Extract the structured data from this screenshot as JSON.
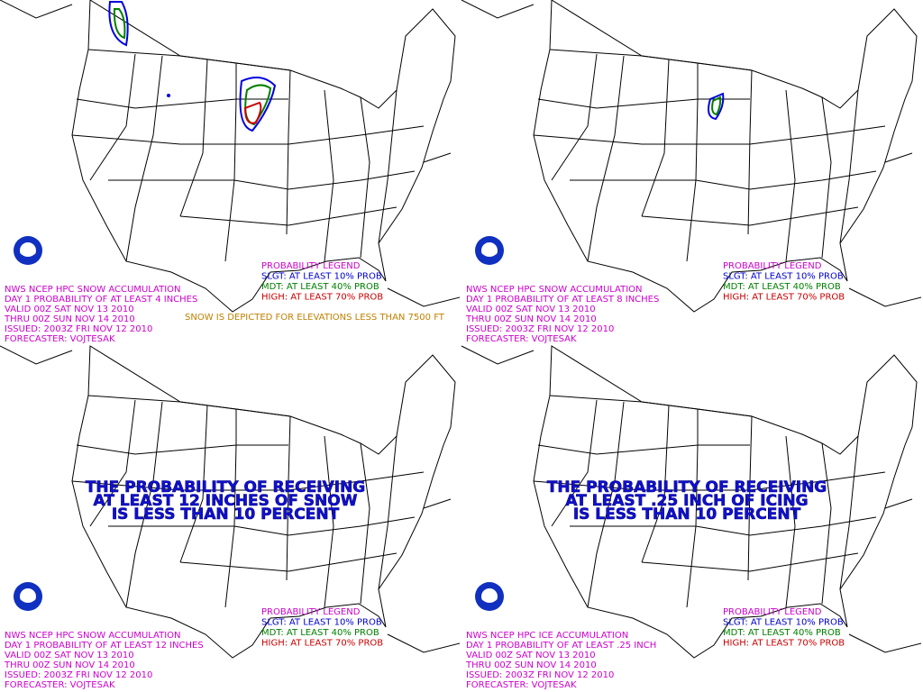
{
  "panels": [
    {
      "info": [
        "NWS NCEP HPC SNOW ACCUMULATION",
        "DAY 1 PROBABILITY OF AT LEAST 4 INCHES",
        "VALID 00Z SAT NOV 13 2010",
        "THRU 00Z SUN NOV 14 2010",
        "ISSUED: 2003Z FRI NOV 12 2010",
        "FORECASTER: VOJTESAK"
      ],
      "legend": {
        "title": "PROBABILITY LEGEND",
        "slgt": "SLGT: AT LEAST 10% PROB",
        "mdt": "MDT: AT LEAST 40% PROB",
        "high": "HIGH: AT LEAST 70% PROB"
      },
      "note": "SNOW IS DEPICTED FOR ELEVATIONS LESS THAN 7500 FT"
    },
    {
      "info": [
        "NWS NCEP HPC SNOW ACCUMULATION",
        "DAY 1 PROBABILITY OF AT LEAST 8 INCHES",
        "VALID 00Z SAT NOV 13 2010",
        "THRU 00Z SUN NOV 14 2010",
        "ISSUED: 2003Z FRI NOV 12 2010",
        "FORECASTER: VOJTESAK"
      ],
      "legend": {
        "title": "PROBABILITY LEGEND",
        "slgt": "SLGT: AT LEAST 10% PROB",
        "mdt": "MDT: AT LEAST 40% PROB",
        "high": "HIGH: AT LEAST 70% PROB"
      }
    },
    {
      "info": [
        "NWS NCEP HPC SNOW ACCUMULATION",
        "DAY 1 PROBABILITY OF AT LEAST 12 INCHES",
        "VALID 00Z SAT NOV 13 2010",
        "THRU 00Z SUN NOV 14 2010",
        "ISSUED: 2003Z FRI NOV 12 2010",
        "FORECASTER: VOJTESAK"
      ],
      "legend": {
        "title": "PROBABILITY LEGEND",
        "slgt": "SLGT: AT LEAST 10% PROB",
        "mdt": "MDT: AT LEAST 40% PROB",
        "high": "HIGH: AT LEAST 70% PROB"
      },
      "message": [
        "THE PROBABILITY OF RECEIVING",
        "AT LEAST 12 INCHES OF SNOW",
        "IS LESS THAN 10 PERCENT"
      ]
    },
    {
      "info": [
        "NWS NCEP HPC ICE ACCUMULATION",
        "DAY 1 PROBABILITY OF AT LEAST .25 INCH",
        "VALID 00Z SAT NOV 13 2010",
        "THRU 00Z SUN NOV 14 2010",
        "ISSUED: 2003Z FRI NOV 12 2010",
        "FORECASTER: VOJTESAK"
      ],
      "legend": {
        "title": "PROBABILITY LEGEND",
        "slgt": "SLGT: AT LEAST 10% PROB",
        "mdt": "MDT: AT LEAST 40% PROB",
        "high": "HIGH: AT LEAST 70% PROB"
      },
      "message": [
        "THE PROBABILITY OF RECEIVING",
        "AT LEAST .25 INCH OF ICING",
        "IS LESS THAN 10 PERCENT"
      ]
    }
  ]
}
